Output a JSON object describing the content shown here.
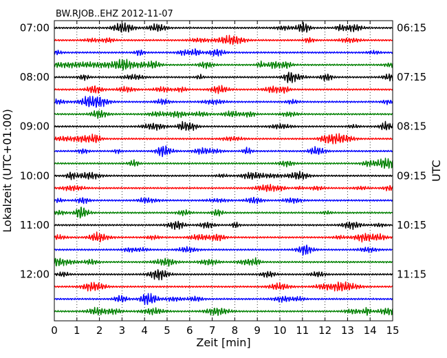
{
  "chart_data": {
    "type": "line",
    "title": "BW.RJOB..EHZ 2012-11-07",
    "xlabel": "Zeit  [min]",
    "ylabel_left": "Lokalzeit (UTC+01:00)",
    "ylabel_right": "UTC",
    "xlim": [
      0,
      15
    ],
    "x_ticks": [
      "0",
      "1",
      "2",
      "3",
      "4",
      "5",
      "6",
      "7",
      "8",
      "9",
      "10",
      "11",
      "12",
      "13",
      "14",
      "15"
    ],
    "x_grid": "dotted",
    "left_ticks": [
      "07:00",
      "08:00",
      "09:00",
      "10:00",
      "11:00",
      "12:00"
    ],
    "right_ticks": [
      "06:15",
      "07:15",
      "08:15",
      "09:15",
      "10:15",
      "11:15"
    ],
    "traces_per_hour": 4,
    "minutes_per_trace": 15,
    "trace_count": 24,
    "trace_colors": [
      "#000000",
      "#ff0000",
      "#0000ff",
      "#008000"
    ],
    "series": [
      {
        "start_local": "07:00",
        "color": "#000000"
      },
      {
        "start_local": "07:15",
        "color": "#ff0000"
      },
      {
        "start_local": "07:30",
        "color": "#0000ff"
      },
      {
        "start_local": "07:45",
        "color": "#008000"
      },
      {
        "start_local": "08:00",
        "color": "#000000"
      },
      {
        "start_local": "08:15",
        "color": "#ff0000"
      },
      {
        "start_local": "08:30",
        "color": "#0000ff"
      },
      {
        "start_local": "08:45",
        "color": "#008000"
      },
      {
        "start_local": "09:00",
        "color": "#000000"
      },
      {
        "start_local": "09:15",
        "color": "#ff0000"
      },
      {
        "start_local": "09:30",
        "color": "#0000ff"
      },
      {
        "start_local": "09:45",
        "color": "#008000"
      },
      {
        "start_local": "10:00",
        "color": "#000000"
      },
      {
        "start_local": "10:15",
        "color": "#ff0000"
      },
      {
        "start_local": "10:30",
        "color": "#0000ff"
      },
      {
        "start_local": "10:45",
        "color": "#008000"
      },
      {
        "start_local": "11:00",
        "color": "#000000"
      },
      {
        "start_local": "11:15",
        "color": "#ff0000"
      },
      {
        "start_local": "11:30",
        "color": "#0000ff"
      },
      {
        "start_local": "11:45",
        "color": "#008000"
      },
      {
        "start_local": "12:00",
        "color": "#000000"
      },
      {
        "start_local": "12:15",
        "color": "#ff0000"
      },
      {
        "start_local": "12:30",
        "color": "#0000ff"
      },
      {
        "start_local": "12:45",
        "color": "#008000"
      }
    ]
  }
}
